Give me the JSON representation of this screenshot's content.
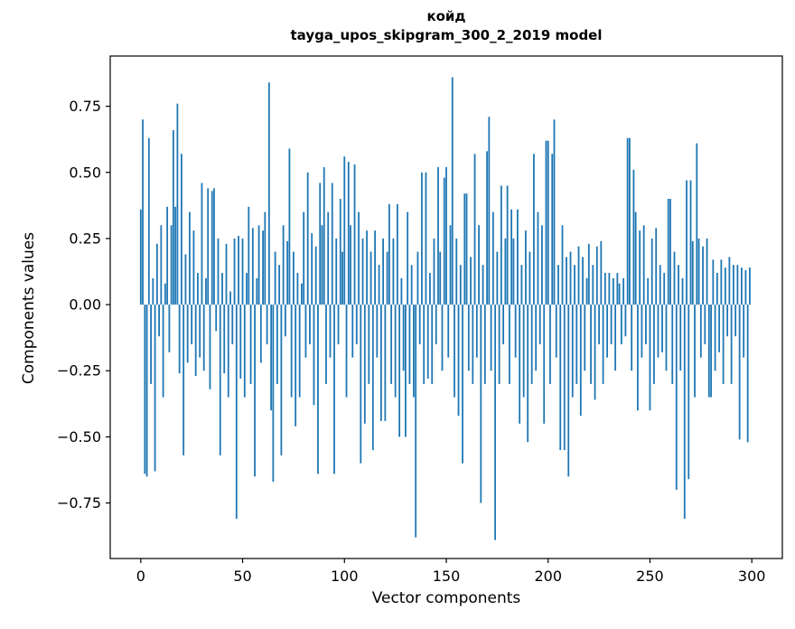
{
  "figure": {
    "title": "койд",
    "subtitle": "tayga_upos_skipgram_300_2_2019 model"
  },
  "chart_data": {
    "type": "bar",
    "title": "койд",
    "subtitle": "tayga_upos_skipgram_300_2_2019 model",
    "xlabel": "Vector components",
    "ylabel": "Components values",
    "bar_color": "#1f77b4",
    "grid": false,
    "legend": "none",
    "xlim": [
      -15,
      315
    ],
    "ylim": [
      -0.96,
      0.94
    ],
    "x_ticks": [
      0,
      50,
      100,
      150,
      200,
      250,
      300
    ],
    "x_tick_labels": [
      "0",
      "50",
      "100",
      "150",
      "200",
      "250",
      "300"
    ],
    "y_ticks": [
      -0.75,
      -0.5,
      -0.25,
      0,
      0.25,
      0.5,
      0.75
    ],
    "y_tick_labels": [
      "−0.75",
      "−0.50",
      "−0.25",
      "0.00",
      "0.25",
      "0.50",
      "0.75"
    ],
    "values": [
      0.36,
      0.7,
      -0.64,
      -0.65,
      0.63,
      -0.3,
      0.1,
      -0.63,
      0.23,
      -0.12,
      0.3,
      -0.35,
      0.08,
      0.37,
      -0.18,
      0.3,
      0.66,
      0.37,
      0.76,
      -0.26,
      0.57,
      -0.57,
      0.19,
      -0.22,
      0.35,
      -0.15,
      0.28,
      -0.27,
      0.12,
      -0.2,
      0.46,
      -0.25,
      0.1,
      0.44,
      -0.32,
      0.43,
      0.44,
      -0.1,
      0.25,
      -0.57,
      0.12,
      -0.26,
      0.23,
      -0.35,
      0.05,
      -0.15,
      0.25,
      -0.81,
      0.26,
      -0.28,
      0.25,
      -0.35,
      0.12,
      0.37,
      -0.3,
      0.29,
      -0.65,
      0.1,
      0.3,
      -0.22,
      0.28,
      0.35,
      -0.15,
      0.84,
      -0.4,
      -0.67,
      0.2,
      -0.3,
      0.15,
      -0.57,
      0.3,
      -0.12,
      0.24,
      0.59,
      -0.35,
      0.2,
      -0.46,
      0.12,
      -0.35,
      0.08,
      0.35,
      -0.2,
      0.5,
      -0.15,
      0.27,
      -0.38,
      0.22,
      -0.64,
      0.46,
      0.3,
      0.52,
      -0.3,
      0.35,
      -0.2,
      0.46,
      -0.64,
      0.25,
      -0.15,
      0.4,
      0.2,
      0.56,
      -0.35,
      0.54,
      0.3,
      -0.2,
      0.53,
      -0.15,
      0.35,
      -0.6,
      0.25,
      -0.45,
      0.28,
      -0.3,
      0.2,
      -0.55,
      0.28,
      -0.2,
      0.15,
      -0.44,
      0.25,
      -0.44,
      0.2,
      0.38,
      -0.3,
      0.25,
      -0.35,
      0.38,
      -0.5,
      0.1,
      -0.25,
      -0.5,
      0.35,
      -0.3,
      0.15,
      -0.35,
      -0.88,
      0.2,
      -0.15,
      0.5,
      -0.3,
      0.5,
      -0.28,
      0.12,
      -0.3,
      0.25,
      -0.15,
      0.52,
      0.2,
      -0.25,
      0.48,
      0.52,
      -0.2,
      0.3,
      0.86,
      -0.35,
      0.25,
      -0.42,
      0.15,
      -0.6,
      0.42,
      0.42,
      -0.25,
      0.18,
      -0.3,
      0.57,
      -0.2,
      0.3,
      -0.75,
      0.15,
      -0.3,
      0.58,
      0.71,
      -0.25,
      0.35,
      -0.89,
      0.2,
      -0.3,
      0.45,
      -0.15,
      0.25,
      0.45,
      -0.3,
      0.36,
      0.25,
      -0.2,
      0.36,
      -0.45,
      0.15,
      -0.35,
      0.28,
      -0.52,
      0.2,
      -0.3,
      0.57,
      -0.25,
      0.35,
      -0.15,
      0.3,
      -0.45,
      0.62,
      0.62,
      -0.3,
      0.57,
      0.7,
      -0.2,
      0.15,
      -0.55,
      0.3,
      -0.55,
      0.18,
      -0.65,
      0.2,
      -0.35,
      0.15,
      -0.3,
      0.22,
      -0.42,
      0.18,
      -0.25,
      0.1,
      0.23,
      -0.3,
      0.15,
      -0.36,
      0.22,
      -0.15,
      0.24,
      -0.3,
      0.12,
      -0.2,
      0.12,
      -0.15,
      0.1,
      -0.25,
      0.12,
      0.08,
      -0.15,
      0.1,
      -0.12,
      0.63,
      0.63,
      -0.25,
      0.51,
      0.35,
      -0.4,
      0.28,
      -0.2,
      0.3,
      -0.15,
      0.1,
      -0.4,
      0.25,
      -0.3,
      0.29,
      -0.2,
      0.15,
      -0.18,
      0.12,
      -0.25,
      0.4,
      0.4,
      -0.3,
      0.2,
      -0.7,
      0.15,
      -0.25,
      0.1,
      -0.81,
      0.47,
      -0.66,
      0.47,
      0.24,
      -0.35,
      0.61,
      0.25,
      -0.2,
      0.22,
      -0.15,
      0.25,
      -0.35,
      -0.35,
      0.17,
      -0.25,
      0.12,
      -0.18,
      0.17,
      -0.3,
      0.14,
      -0.12,
      0.18,
      -0.3,
      0.15,
      -0.12,
      0.15,
      -0.51,
      0.14,
      -0.2,
      0.13,
      -0.52,
      0.14
    ]
  }
}
